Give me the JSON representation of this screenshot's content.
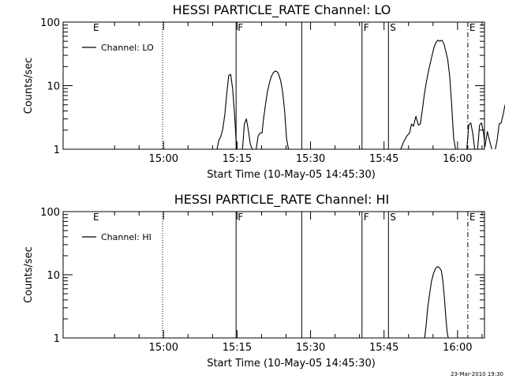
{
  "footer_timestamp": "23-Mar-2010 19:30",
  "chart_data": [
    {
      "type": "line",
      "title": "HESSI PARTICLE_RATE Channel: LO",
      "xlabel": "Start Time (10-May-05 14:45:30)",
      "ylabel": "Counts/sec",
      "y_scale": "log",
      "ylim": [
        1,
        100
      ],
      "xlim_minutes": [
        -5.5,
        80.5
      ],
      "x_ticks": [
        {
          "minute": 15,
          "label": "15:00"
        },
        {
          "minute": 30,
          "label": "15:15"
        },
        {
          "minute": 45,
          "label": "15:30"
        },
        {
          "minute": 60,
          "label": "15:45"
        },
        {
          "minute": 75,
          "label": "16:00"
        },
        {
          "minute": 90,
          "label": "16:15"
        }
      ],
      "y_ticks": [
        {
          "value": 1,
          "label": "1"
        },
        {
          "value": 10,
          "label": "10"
        },
        {
          "value": 100,
          "label": "100"
        }
      ],
      "legend": {
        "label": "Channel: LO",
        "position": "top-left"
      },
      "annotations": [
        {
          "minute": 0.3,
          "label": "E",
          "line": "none"
        },
        {
          "minute": 14.8,
          "label": "",
          "line": "dotted"
        },
        {
          "minute": 29.8,
          "label": "F",
          "line": "solid"
        },
        {
          "minute": 43.2,
          "label": "",
          "line": "solid"
        },
        {
          "minute": 55.5,
          "label": "F",
          "line": "solid"
        },
        {
          "minute": 60.9,
          "label": "S",
          "line": "solid"
        },
        {
          "minute": 77.1,
          "label": "E",
          "line": "dashdot"
        },
        {
          "minute": 97.3,
          "label": "",
          "line": "dotted"
        }
      ],
      "series": [
        {
          "name": "Channel: LO",
          "segments": [
            [
              [
                25.9,
                1
              ],
              [
                26.3,
                1.4
              ],
              [
                26.7,
                1.6
              ],
              [
                27.1,
                2.1
              ],
              [
                27.5,
                3.5
              ],
              [
                27.9,
                7.5
              ],
              [
                28.3,
                14.5
              ],
              [
                28.7,
                15
              ],
              [
                29.1,
                9
              ],
              [
                29.5,
                3.5
              ],
              [
                29.9,
                1
              ]
            ],
            [
              [
                31.1,
                1
              ],
              [
                31.5,
                2.5
              ],
              [
                31.9,
                3
              ],
              [
                32.3,
                2
              ],
              [
                32.7,
                1.2
              ],
              [
                33.1,
                1
              ]
            ],
            [
              [
                33.9,
                1
              ],
              [
                34.3,
                1.6
              ],
              [
                34.7,
                1.8
              ],
              [
                35.1,
                1.8
              ],
              [
                35.4,
                3
              ],
              [
                35.8,
                5
              ],
              [
                36.2,
                8
              ],
              [
                36.6,
                11
              ],
              [
                37,
                14
              ],
              [
                37.4,
                16
              ],
              [
                37.8,
                17
              ],
              [
                38.2,
                16.5
              ],
              [
                38.5,
                15
              ],
              [
                38.9,
                12
              ],
              [
                39.3,
                8
              ],
              [
                39.7,
                4
              ],
              [
                40.1,
                1.5
              ],
              [
                40.5,
                1
              ]
            ],
            [
              [
                63.4,
                1
              ],
              [
                64,
                1.3
              ],
              [
                64.6,
                1.6
              ],
              [
                65.2,
                1.8
              ],
              [
                65.6,
                2.5
              ],
              [
                66,
                2.3
              ],
              [
                66.5,
                3.3
              ],
              [
                67,
                2.4
              ],
              [
                67.4,
                2.5
              ],
              [
                67.8,
                4
              ],
              [
                68.2,
                7
              ],
              [
                68.6,
                11
              ],
              [
                69,
                16
              ],
              [
                69.4,
                22
              ],
              [
                69.8,
                30
              ],
              [
                70.2,
                40
              ],
              [
                70.6,
                48
              ],
              [
                71,
                52
              ],
              [
                71.4,
                50
              ],
              [
                71.8,
                52
              ],
              [
                72.2,
                46
              ],
              [
                72.6,
                35
              ],
              [
                73,
                26
              ],
              [
                73.4,
                14
              ],
              [
                73.8,
                5
              ],
              [
                74.2,
                1.5
              ],
              [
                74.6,
                1
              ]
            ],
            [
              [
                76.9,
                1
              ],
              [
                77.3,
                2.4
              ],
              [
                77.7,
                2.6
              ],
              [
                78.1,
                1.8
              ],
              [
                78.5,
                1
              ]
            ],
            [
              [
                79.1,
                1
              ],
              [
                79.5,
                2.4
              ],
              [
                79.9,
                2.6
              ],
              [
                80.3,
                1.8
              ],
              [
                80.6,
                1.1
              ],
              [
                81.1,
                1.9
              ],
              [
                81.5,
                1.4
              ],
              [
                82,
                1
              ]
            ],
            [
              [
                82.7,
                1
              ],
              [
                83.1,
                1.4
              ],
              [
                83.5,
                2.5
              ],
              [
                83.9,
                2.6
              ],
              [
                84.3,
                3.5
              ],
              [
                84.7,
                5
              ],
              [
                85.1,
                5
              ],
              [
                85.5,
                3.5
              ],
              [
                85.9,
                2
              ],
              [
                86.3,
                1.2
              ],
              [
                86.7,
                1
              ]
            ]
          ]
        }
      ]
    },
    {
      "type": "line",
      "title": "HESSI PARTICLE_RATE Channel: HI",
      "xlabel": "Start Time (10-May-05 14:45:30)",
      "ylabel": "Counts/sec",
      "y_scale": "log",
      "ylim": [
        1,
        100
      ],
      "xlim_minutes": [
        -5.5,
        80.5
      ],
      "x_ticks": [
        {
          "minute": 15,
          "label": "15:00"
        },
        {
          "minute": 30,
          "label": "15:15"
        },
        {
          "minute": 45,
          "label": "15:30"
        },
        {
          "minute": 60,
          "label": "15:45"
        },
        {
          "minute": 75,
          "label": "16:00"
        },
        {
          "minute": 90,
          "label": "16:15"
        }
      ],
      "y_ticks": [
        {
          "value": 1,
          "label": "1"
        },
        {
          "value": 10,
          "label": "10"
        },
        {
          "value": 100,
          "label": "100"
        }
      ],
      "legend": {
        "label": "Channel: HI",
        "position": "top-left"
      },
      "annotations": [
        {
          "minute": 0.3,
          "label": "E",
          "line": "none"
        },
        {
          "minute": 14.8,
          "label": "",
          "line": "dotted"
        },
        {
          "minute": 29.8,
          "label": "F",
          "line": "solid"
        },
        {
          "minute": 43.2,
          "label": "",
          "line": "solid"
        },
        {
          "minute": 55.5,
          "label": "F",
          "line": "solid"
        },
        {
          "minute": 60.9,
          "label": "S",
          "line": "solid"
        },
        {
          "minute": 77.1,
          "label": "E",
          "line": "dashdot"
        },
        {
          "minute": 97.3,
          "label": "",
          "line": "dotted"
        }
      ],
      "series": [
        {
          "name": "Channel: HI",
          "segments": [
            [
              [
                68.3,
                1
              ],
              [
                68.6,
                1.6
              ],
              [
                68.9,
                3
              ],
              [
                69.3,
                5
              ],
              [
                69.7,
                8
              ],
              [
                70.1,
                10.5
              ],
              [
                70.5,
                12.5
              ],
              [
                70.9,
                13.5
              ],
              [
                71.3,
                13
              ],
              [
                71.7,
                11.5
              ],
              [
                72,
                8
              ],
              [
                72.3,
                4.5
              ],
              [
                72.6,
                2.2
              ],
              [
                72.9,
                1.2
              ],
              [
                73.1,
                1
              ]
            ]
          ]
        }
      ]
    }
  ]
}
